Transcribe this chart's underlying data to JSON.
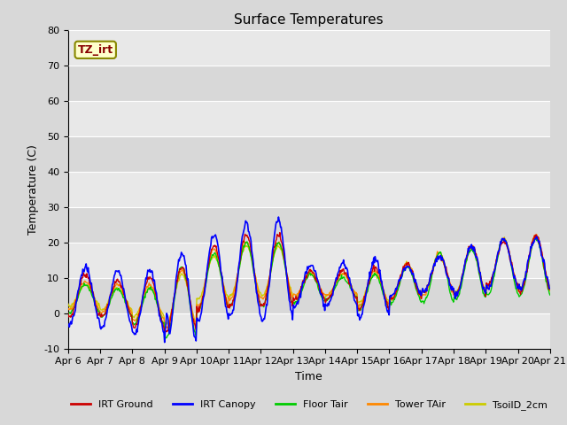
{
  "title": "Surface Temperatures",
  "xlabel": "Time",
  "ylabel": "Temperature (C)",
  "ylim": [
    -10,
    80
  ],
  "background_color": "#d8d8d8",
  "plot_bg_color": "#e8e8e8",
  "grid_color": "#ffffff",
  "band_color_light": "#e8e8e8",
  "band_color_dark": "#d8d8d8",
  "tz_label": "TZ_irt",
  "tz_label_color": "#880000",
  "tz_box_color": "#ffffcc",
  "tz_box_edge_color": "#888800",
  "legend_entries": [
    "IRT Ground",
    "IRT Canopy",
    "Floor Tair",
    "Tower TAir",
    "TsoilD_2cm"
  ],
  "line_colors": [
    "#cc0000",
    "#0000ff",
    "#00cc00",
    "#ff8800",
    "#cccc00"
  ],
  "x_tick_labels": [
    "Apr 6",
    "Apr 7",
    "Apr 8",
    "Apr 9",
    "Apr 10",
    "Apr 11",
    "Apr 12",
    "Apr 13",
    "Apr 14",
    "Apr 15",
    "Apr 16",
    "Apr 17",
    "Apr 18",
    "Apr 19",
    "Apr 20",
    "Apr 21"
  ],
  "x_tick_positions": [
    0,
    1,
    2,
    3,
    4,
    5,
    6,
    7,
    8,
    9,
    10,
    11,
    12,
    13,
    14,
    15
  ],
  "figsize": [
    6.4,
    4.8
  ],
  "dpi": 100,
  "title_fontsize": 11,
  "axis_label_fontsize": 9,
  "tick_fontsize": 8,
  "legend_fontsize": 8
}
